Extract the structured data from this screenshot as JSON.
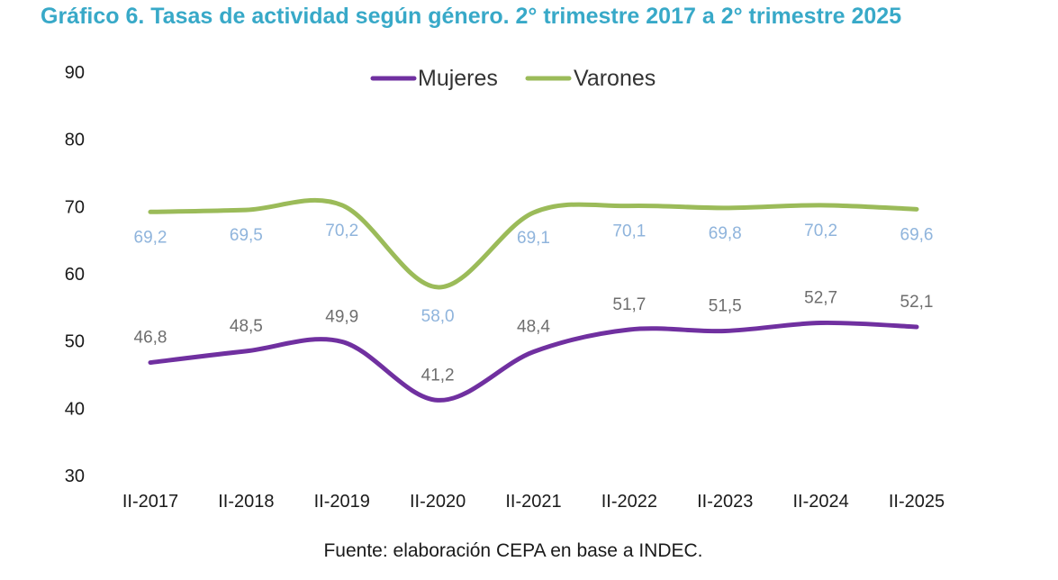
{
  "chart_data": {
    "type": "line",
    "title": "Gráfico 6. Tasas de actividad según género. 2° trimestre 2017 a 2° trimestre 2025",
    "xlabel": "",
    "ylabel": "",
    "ylim": [
      30,
      90
    ],
    "yticks": [
      90,
      80,
      70,
      60,
      50,
      40,
      30
    ],
    "grid": false,
    "legend_position": "top-center",
    "categories": [
      "II-2017",
      "II-2018",
      "II-2019",
      "II-2020",
      "II-2021",
      "II-2022",
      "II-2023",
      "II-2024",
      "II-2025"
    ],
    "series": [
      {
        "name": "Mujeres",
        "color": "#7030a0",
        "label_color": "#6e6e6e",
        "values": [
          46.8,
          48.5,
          49.9,
          41.2,
          48.4,
          51.7,
          51.5,
          52.7,
          52.1
        ],
        "labels": [
          "46,8",
          "48,5",
          "49,9",
          "41,2",
          "48,4",
          "51,7",
          "51,5",
          "52,7",
          "52,1"
        ]
      },
      {
        "name": "Varones",
        "color": "#9bbb59",
        "label_color": "#8fb4dc",
        "values": [
          69.2,
          69.5,
          70.2,
          58.0,
          69.1,
          70.1,
          69.8,
          70.2,
          69.6
        ],
        "labels": [
          "69,2",
          "69,5",
          "70,2",
          "58,0",
          "69,1",
          "70,1",
          "69,8",
          "70,2",
          "69,6"
        ]
      }
    ],
    "source": "Fuente: elaboración CEPA en base a INDEC."
  }
}
